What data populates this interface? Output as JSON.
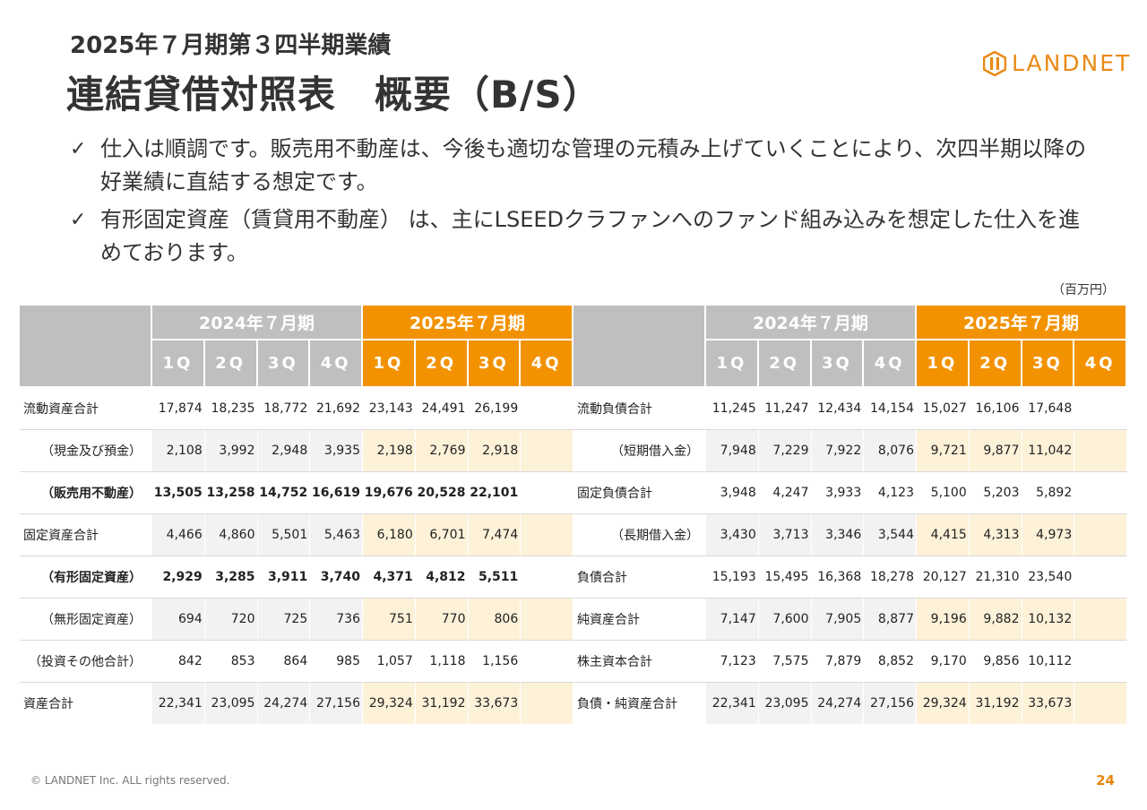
{
  "header": {
    "subtitle": "2025年７月期第３四半期業績",
    "title": "連結貸借対照表　概要（B/S）"
  },
  "logo": {
    "text": "LANDNET",
    "icon": "landnet-logo-icon",
    "color": "#ea8a16"
  },
  "bullets": [
    {
      "mark": "✓",
      "text": "仕入は順調です。販売用不動産は、今後も適切な管理の元積み上げていくことにより、次四半期以降の好業績に直結する想定です。"
    },
    {
      "mark": "✓",
      "text": "有形固定資産（賃貸用不動産） は、主にLSEEDクラファンへのファンド組み込みを想定した仕入を進めております。"
    }
  ],
  "unit": "（百万円）",
  "colors": {
    "grey_header": "#bfbfbf",
    "orange_header": "#f39200",
    "grey_cell": "#f2f2f2",
    "orange_cell": "#fdf1d8"
  },
  "table": {
    "year_2024": "2024年７月期",
    "year_2025": "2025年７月期",
    "quarters": [
      "1Q",
      "2Q",
      "3Q",
      "4Q"
    ],
    "assets": [
      {
        "label": "流動資産合計",
        "values": [
          "17,874",
          "18,235",
          "18,772",
          "21,692",
          "23,143",
          "24,491",
          "26,199",
          ""
        ]
      },
      {
        "label": "（現金及び預金）",
        "values": [
          "2,108",
          "3,992",
          "2,948",
          "3,935",
          "2,198",
          "2,769",
          "2,918",
          ""
        ]
      },
      {
        "label": "（販売用不動産）",
        "values": [
          "13,505",
          "13,258",
          "14,752",
          "16,619",
          "19,676",
          "20,528",
          "22,101",
          ""
        ]
      },
      {
        "label": "固定資産合計",
        "values": [
          "4,466",
          "4,860",
          "5,501",
          "5,463",
          "6,180",
          "6,701",
          "7,474",
          ""
        ]
      },
      {
        "label": "（有形固定資産）",
        "values": [
          "2,929",
          "3,285",
          "3,911",
          "3,740",
          "4,371",
          "4,812",
          "5,511",
          ""
        ]
      },
      {
        "label": "（無形固定資産）",
        "values": [
          "694",
          "720",
          "725",
          "736",
          "751",
          "770",
          "806",
          ""
        ]
      },
      {
        "label": "（投資その他合計）",
        "values": [
          "842",
          "853",
          "864",
          "985",
          "1,057",
          "1,118",
          "1,156",
          ""
        ]
      },
      {
        "label": "資産合計",
        "values": [
          "22,341",
          "23,095",
          "24,274",
          "27,156",
          "29,324",
          "31,192",
          "33,673",
          ""
        ]
      }
    ],
    "liabilities": [
      {
        "label": "流動負債合計",
        "values": [
          "11,245",
          "11,247",
          "12,434",
          "14,154",
          "15,027",
          "16,106",
          "17,648",
          ""
        ]
      },
      {
        "label": "（短期借入金）",
        "values": [
          "7,948",
          "7,229",
          "7,922",
          "8,076",
          "9,721",
          "9,877",
          "11,042",
          ""
        ]
      },
      {
        "label": "固定負債合計",
        "values": [
          "3,948",
          "4,247",
          "3,933",
          "4,123",
          "5,100",
          "5,203",
          "5,892",
          ""
        ]
      },
      {
        "label": "（長期借入金）",
        "values": [
          "3,430",
          "3,713",
          "3,346",
          "3,544",
          "4,415",
          "4,313",
          "4,973",
          ""
        ]
      },
      {
        "label": "負債合計",
        "values": [
          "15,193",
          "15,495",
          "16,368",
          "18,278",
          "20,127",
          "21,310",
          "23,540",
          ""
        ]
      },
      {
        "label": "純資産合計",
        "values": [
          "7,147",
          "7,600",
          "7,905",
          "8,877",
          "9,196",
          "9,882",
          "10,132",
          ""
        ]
      },
      {
        "label": "株主資本合計",
        "values": [
          "7,123",
          "7,575",
          "7,879",
          "8,852",
          "9,170",
          "9,856",
          "10,112",
          ""
        ]
      },
      {
        "label": "負債・純資産合計",
        "values": [
          "22,341",
          "23,095",
          "24,274",
          "27,156",
          "29,324",
          "31,192",
          "33,673",
          ""
        ]
      }
    ]
  },
  "footer": {
    "copyright": "© LANDNET Inc. ALL rights reserved.",
    "page": "24"
  }
}
